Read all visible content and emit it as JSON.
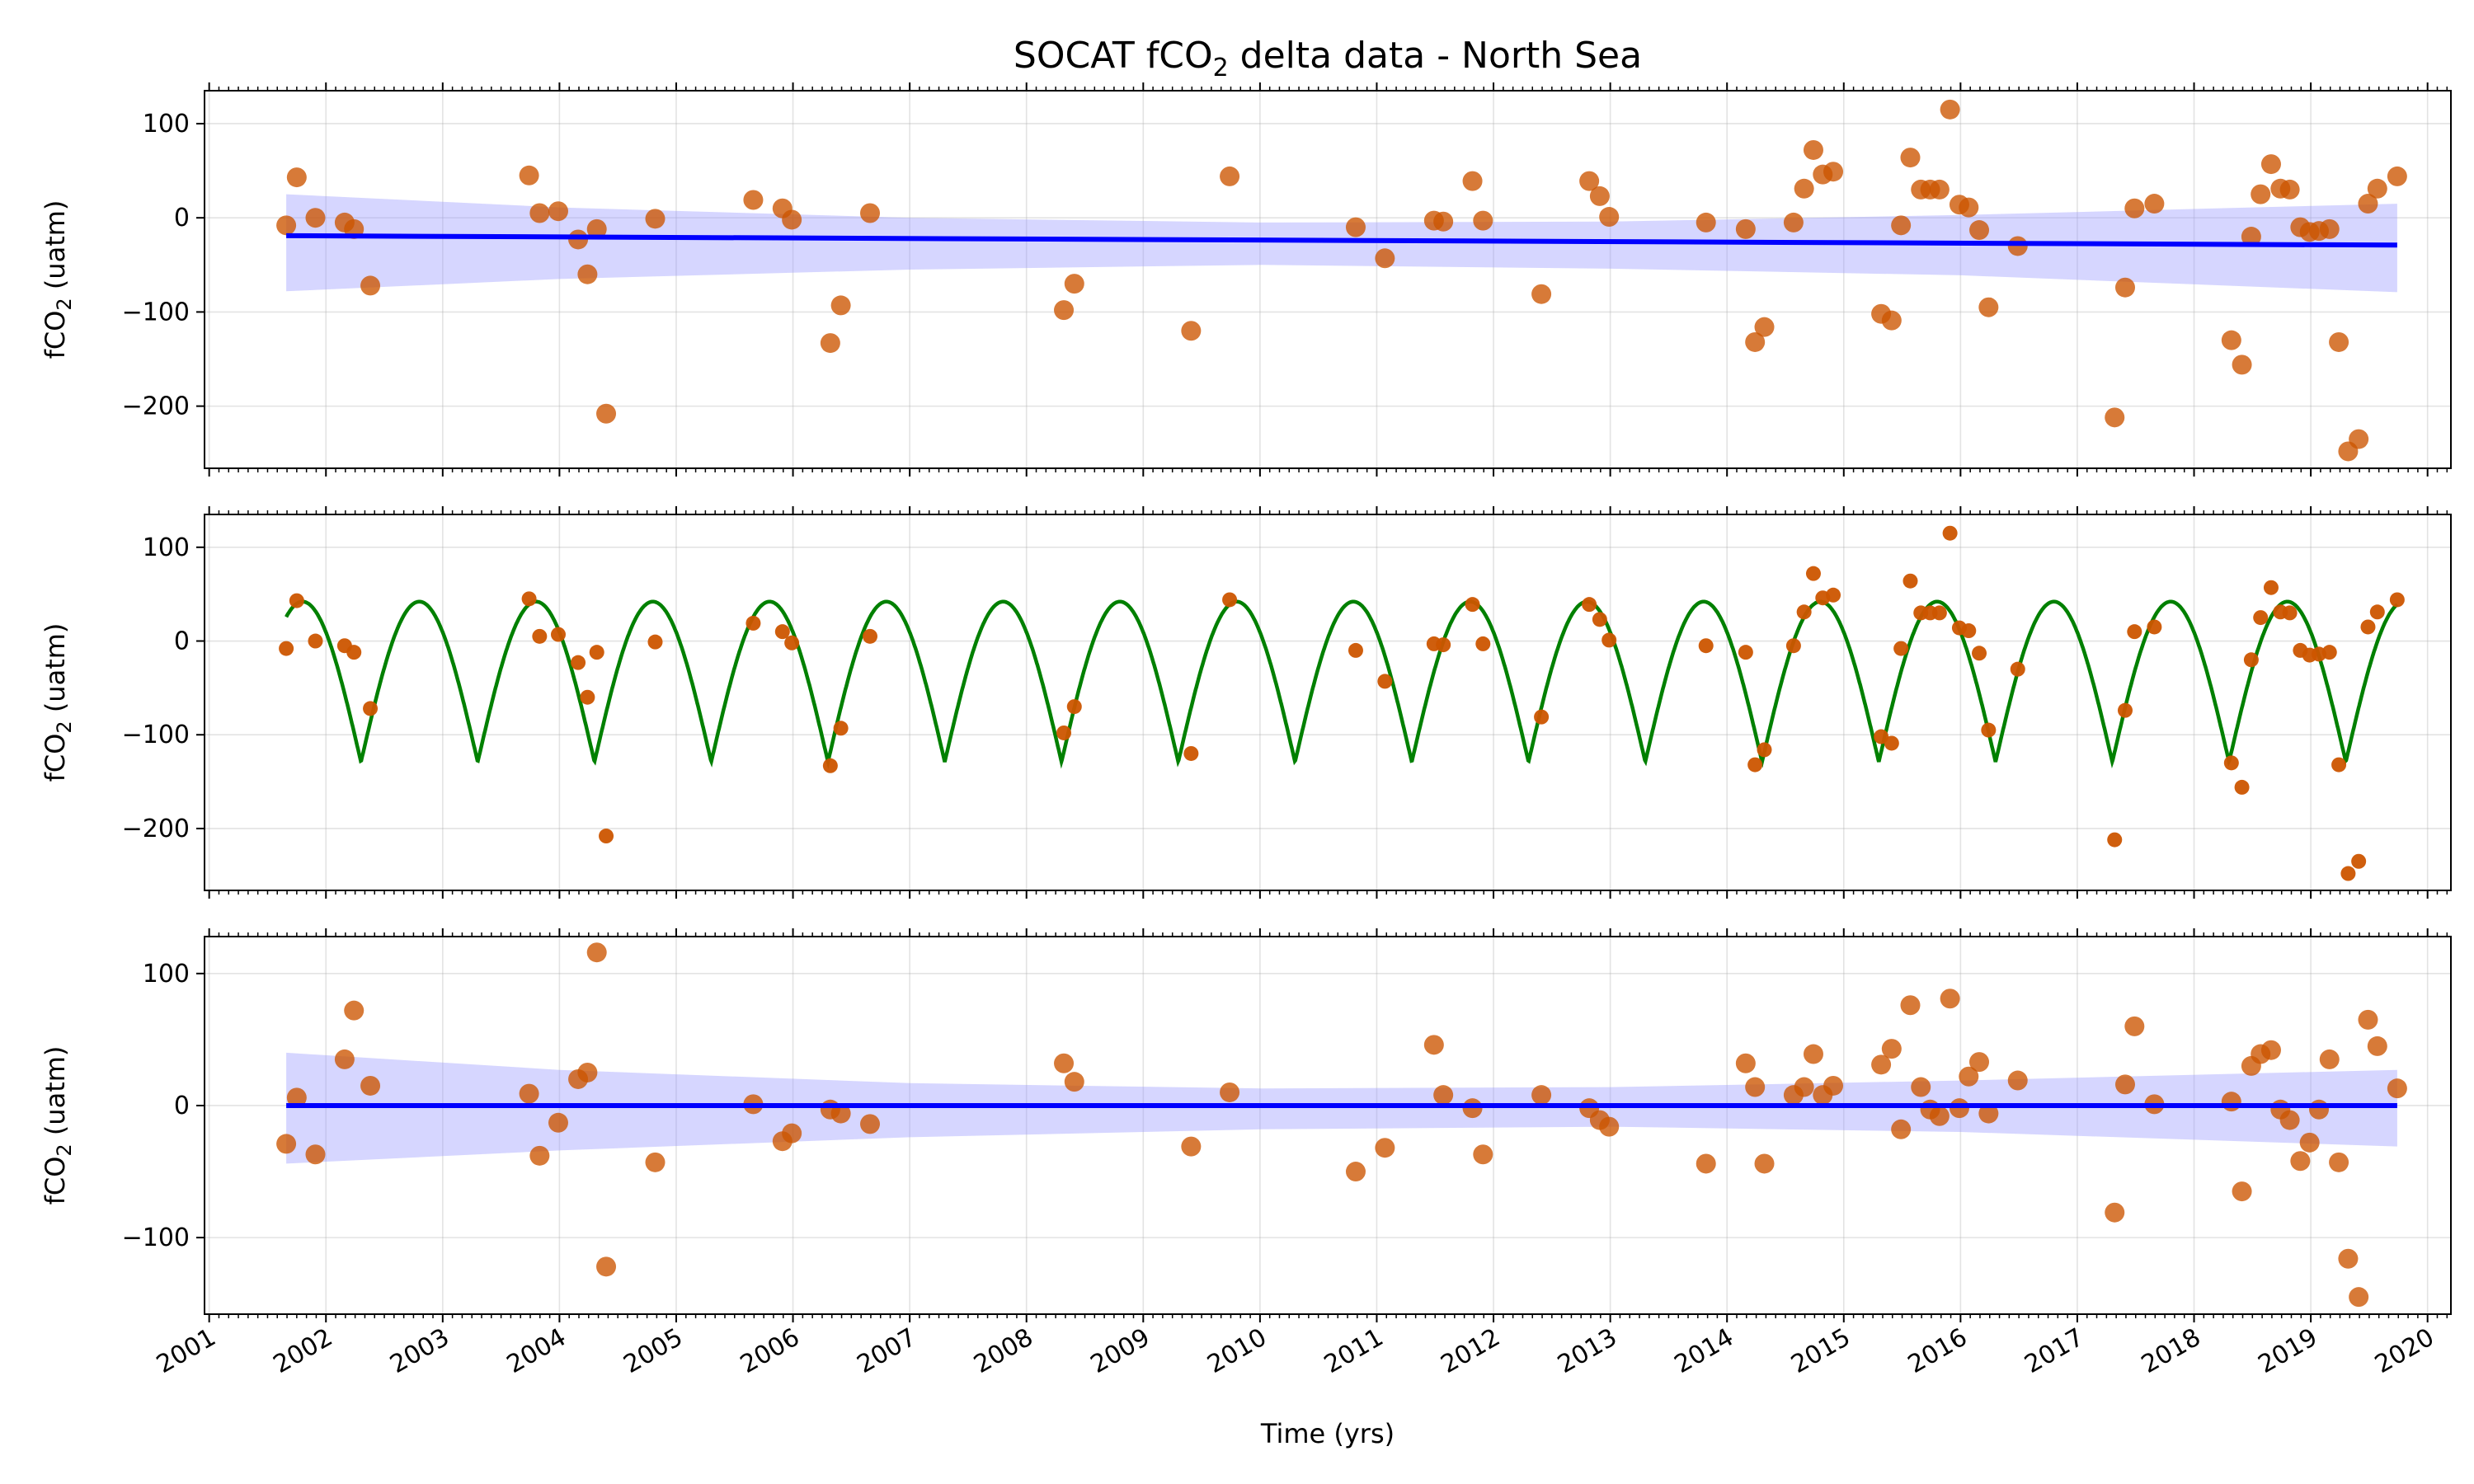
{
  "title_main": "SOCAT fCO",
  "title_sub": "2",
  "title_rest": " delta data - North Sea",
  "ylabel_main": "fCO",
  "ylabel_sub": "2",
  "ylabel_rest": " (uatm)",
  "xlabel": "Time (yrs)",
  "colors": {
    "points": "#cc5500",
    "trend": "#0000ff",
    "band": "#9999ff",
    "seasonal": "#008000"
  },
  "chart_data": [
    {
      "type": "scatter",
      "panel": "top",
      "xlim": [
        2000.96,
        2020.2
      ],
      "ylim": [
        -266,
        135
      ],
      "yticks": [
        -200,
        -100,
        0,
        100
      ],
      "xticks": [
        2001,
        2002,
        2003,
        2004,
        2005,
        2006,
        2007,
        2008,
        2009,
        2010,
        2011,
        2012,
        2013,
        2014,
        2015,
        2016,
        2017,
        2018,
        2019,
        2020
      ],
      "grid": true,
      "x": [
        2001.66,
        2001.75,
        2001.91,
        2002.16,
        2002.24,
        2002.38,
        2003.74,
        2003.83,
        2003.99,
        2004.16,
        2004.24,
        2004.32,
        2004.4,
        2004.82,
        2005.66,
        2005.91,
        2005.99,
        2006.32,
        2006.41,
        2006.66,
        2008.32,
        2008.41,
        2009.41,
        2009.74,
        2010.82,
        2011.07,
        2011.49,
        2011.57,
        2011.82,
        2011.91,
        2012.41,
        2012.82,
        2012.91,
        2012.99,
        2013.82,
        2014.16,
        2014.24,
        2014.32,
        2014.57,
        2014.66,
        2014.74,
        2014.82,
        2014.91,
        2015.32,
        2015.41,
        2015.49,
        2015.57,
        2015.66,
        2015.74,
        2015.82,
        2015.91,
        2015.99,
        2016.07,
        2016.16,
        2016.24,
        2016.49,
        2017.32,
        2017.41,
        2017.49,
        2017.66,
        2018.32,
        2018.41,
        2018.49,
        2018.57,
        2018.66,
        2018.74,
        2018.82,
        2018.91,
        2018.99,
        2019.07,
        2019.16,
        2019.24,
        2019.32,
        2019.41,
        2019.49,
        2019.57,
        2019.74
      ],
      "y": [
        -8,
        43,
        0,
        -5,
        -12,
        -72,
        45,
        5,
        7,
        -23,
        -60,
        -12,
        -208,
        -1,
        19,
        10,
        -2,
        -133,
        -93,
        5,
        -98,
        -70,
        -120,
        44,
        -10,
        -43,
        -3,
        -4,
        39,
        -3,
        -81,
        39,
        23,
        1,
        -5,
        -12,
        -132,
        -116,
        -5,
        31,
        72,
        46,
        49,
        -102,
        -109,
        -8,
        64,
        30,
        30,
        30,
        115,
        14,
        11,
        -13,
        -95,
        -30,
        -212,
        -74,
        10,
        15,
        -130,
        -156,
        -20,
        25,
        57,
        31,
        30,
        -10,
        -15,
        -14,
        -12,
        -132,
        -248,
        -235,
        15,
        31,
        44
      ],
      "trend": {
        "x": [
          2001.66,
          2019.74
        ],
        "y": [
          -19,
          -29
        ]
      },
      "band_upper": {
        "x": [
          2001.66,
          2004,
          2007,
          2010,
          2013,
          2016,
          2019.74
        ],
        "y": [
          25,
          11,
          0,
          -5,
          -4,
          3,
          15
        ]
      },
      "band_lower": {
        "x": [
          2001.66,
          2004,
          2007,
          2010,
          2013,
          2016,
          2019.74
        ],
        "y": [
          -78,
          -65,
          -55,
          -50,
          -54,
          -61,
          -79
        ]
      }
    },
    {
      "type": "scatter",
      "panel": "middle",
      "xlim": [
        2000.96,
        2020.2
      ],
      "ylim": [
        -266,
        135
      ],
      "yticks": [
        -200,
        -100,
        0,
        100
      ],
      "grid": true,
      "x": [
        2001.66,
        2001.75,
        2001.91,
        2002.16,
        2002.24,
        2002.38,
        2003.74,
        2003.83,
        2003.99,
        2004.16,
        2004.24,
        2004.32,
        2004.4,
        2004.82,
        2005.66,
        2005.91,
        2005.99,
        2006.32,
        2006.41,
        2006.66,
        2008.32,
        2008.41,
        2009.41,
        2009.74,
        2010.82,
        2011.07,
        2011.49,
        2011.57,
        2011.82,
        2011.91,
        2012.41,
        2012.82,
        2012.91,
        2012.99,
        2013.82,
        2014.16,
        2014.24,
        2014.32,
        2014.57,
        2014.66,
        2014.74,
        2014.82,
        2014.91,
        2015.32,
        2015.41,
        2015.49,
        2015.57,
        2015.66,
        2015.74,
        2015.82,
        2015.91,
        2015.99,
        2016.07,
        2016.16,
        2016.24,
        2016.49,
        2017.32,
        2017.41,
        2017.49,
        2017.66,
        2018.32,
        2018.41,
        2018.49,
        2018.57,
        2018.66,
        2018.74,
        2018.82,
        2018.91,
        2018.99,
        2019.07,
        2019.16,
        2019.24,
        2019.32,
        2019.41,
        2019.49,
        2019.57,
        2019.74
      ],
      "y": [
        -8,
        43,
        0,
        -5,
        -12,
        -72,
        45,
        5,
        7,
        -23,
        -60,
        -12,
        -208,
        -1,
        19,
        10,
        -2,
        -133,
        -93,
        5,
        -98,
        -70,
        -120,
        44,
        -10,
        -43,
        -3,
        -4,
        39,
        -3,
        -81,
        39,
        23,
        1,
        -5,
        -12,
        -132,
        -116,
        -5,
        31,
        72,
        46,
        49,
        -102,
        -109,
        -8,
        64,
        30,
        30,
        30,
        115,
        14,
        11,
        -13,
        -95,
        -30,
        -212,
        -74,
        10,
        15,
        -130,
        -156,
        -20,
        25,
        57,
        31,
        30,
        -10,
        -15,
        -14,
        -12,
        -132,
        -248,
        -235,
        15,
        31,
        44
      ],
      "seasonal_fit": {
        "x_start": 2001.66,
        "x_end": 2019.74,
        "max": 42,
        "min": -129,
        "period_years": 1.0,
        "trough_phase": 0.3
      }
    },
    {
      "type": "scatter",
      "panel": "bottom",
      "xlim": [
        2000.96,
        2020.2
      ],
      "ylim": [
        -158,
        128
      ],
      "yticks": [
        -100,
        0,
        100
      ],
      "grid": true,
      "x": [
        2001.66,
        2001.75,
        2001.91,
        2002.16,
        2002.24,
        2002.38,
        2003.74,
        2003.83,
        2003.99,
        2004.16,
        2004.24,
        2004.32,
        2004.4,
        2004.82,
        2005.66,
        2005.91,
        2005.99,
        2006.32,
        2006.41,
        2006.66,
        2008.32,
        2008.41,
        2009.41,
        2009.74,
        2010.82,
        2011.07,
        2011.49,
        2011.57,
        2011.82,
        2011.91,
        2012.41,
        2012.82,
        2012.91,
        2012.99,
        2013.82,
        2014.16,
        2014.24,
        2014.32,
        2014.57,
        2014.66,
        2014.74,
        2014.82,
        2014.91,
        2015.32,
        2015.41,
        2015.49,
        2015.57,
        2015.66,
        2015.74,
        2015.82,
        2015.91,
        2015.99,
        2016.07,
        2016.16,
        2016.24,
        2016.49,
        2017.32,
        2017.41,
        2017.49,
        2017.66,
        2018.32,
        2018.41,
        2018.49,
        2018.57,
        2018.66,
        2018.74,
        2018.82,
        2018.91,
        2018.99,
        2019.07,
        2019.16,
        2019.24,
        2019.32,
        2019.41,
        2019.49,
        2019.57,
        2019.74
      ],
      "y": [
        -29,
        6,
        -37,
        35,
        72,
        15,
        9,
        -38,
        -13,
        20,
        25,
        116,
        -122,
        -43,
        1,
        -27,
        -21,
        -3,
        -6,
        -14,
        32,
        18,
        -31,
        10,
        -50,
        -32,
        46,
        8,
        -2,
        -37,
        8,
        -2,
        -11,
        -16,
        -44,
        32,
        14,
        -44,
        8,
        14,
        39,
        8,
        15,
        31,
        43,
        -18,
        76,
        14,
        -3,
        -8,
        81,
        -2,
        22,
        33,
        -6,
        19,
        -81,
        16,
        60,
        1,
        3,
        -65,
        30,
        39,
        42,
        -3,
        -11,
        -42,
        -28,
        -3,
        35,
        -43,
        -116,
        -145,
        65,
        45,
        13
      ],
      "trend": {
        "x": [
          2001.66,
          2019.74
        ],
        "y": [
          0,
          0
        ]
      },
      "band_upper": {
        "x": [
          2001.66,
          2004,
          2007,
          2010,
          2013,
          2016,
          2019.74
        ],
        "y": [
          40,
          27,
          17,
          13,
          14,
          19,
          27
        ]
      },
      "band_lower": {
        "x": [
          2001.66,
          2004,
          2007,
          2010,
          2013,
          2016,
          2019.74
        ],
        "y": [
          -44,
          -34,
          -24,
          -18,
          -16,
          -20,
          -31
        ]
      }
    }
  ]
}
